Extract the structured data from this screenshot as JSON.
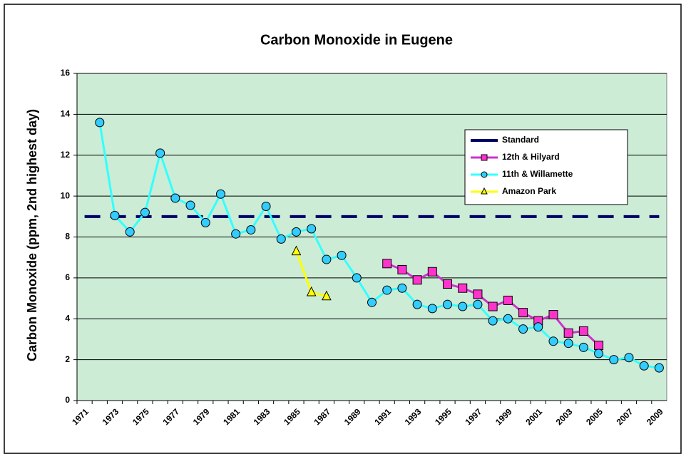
{
  "chart_data": {
    "type": "line",
    "title": "Carbon Monoxide in Eugene",
    "y_label": "Carbon Monoxide (ppm, 2nd highest day)",
    "categories": [
      "1971",
      null,
      "1973",
      null,
      "1975",
      null,
      "1977",
      null,
      "1979",
      null,
      "1981",
      null,
      "1983",
      null,
      "1985",
      null,
      "1987",
      null,
      "1989",
      null,
      "1991",
      null,
      "1993",
      null,
      "1995",
      null,
      "1997",
      null,
      "1999",
      null,
      "2001",
      null,
      "2003",
      null,
      "2005",
      null,
      "2007",
      null,
      "2009"
    ],
    "ylim": [
      0,
      16
    ],
    "yticks": [
      0,
      2,
      4,
      6,
      8,
      10,
      12,
      14,
      16
    ],
    "grid": true,
    "series": [
      {
        "name": "Standard",
        "color": "#000066",
        "marker": "none",
        "dash": true,
        "values": [
          9,
          9,
          9,
          9,
          9,
          9,
          9,
          9,
          9,
          9,
          9,
          9,
          9,
          9,
          9,
          9,
          9,
          9,
          9,
          9,
          9,
          9,
          9,
          9,
          9,
          9,
          9,
          9,
          9,
          9,
          9,
          9,
          9,
          9,
          9,
          9,
          9,
          9,
          9
        ]
      },
      {
        "name": "12th & Hilyard",
        "color": "#cc33cc",
        "marker": "square",
        "marker_color": "#ff33cc",
        "dash": false,
        "values": [
          null,
          null,
          null,
          null,
          null,
          null,
          null,
          null,
          null,
          null,
          null,
          null,
          null,
          null,
          null,
          null,
          null,
          null,
          null,
          null,
          6.7,
          6.4,
          5.9,
          6.3,
          5.7,
          5.5,
          5.2,
          4.6,
          4.9,
          4.3,
          3.9,
          4.2,
          3.3,
          3.4,
          2.7,
          null,
          null,
          null,
          null
        ]
      },
      {
        "name": "11th & Willamette",
        "color": "#33ffff",
        "marker": "circle",
        "marker_color": "#33ccff",
        "dash": false,
        "values": [
          null,
          13.6,
          9.05,
          8.25,
          9.2,
          12.1,
          9.9,
          9.55,
          8.7,
          10.1,
          8.15,
          8.35,
          9.5,
          7.9,
          8.25,
          8.4,
          6.9,
          7.1,
          6.0,
          4.8,
          5.4,
          5.5,
          4.7,
          4.5,
          4.7,
          4.6,
          4.7,
          3.9,
          4.0,
          3.5,
          3.6,
          2.9,
          2.8,
          2.6,
          2.3,
          2.0,
          2.1,
          1.7,
          1.6
        ]
      },
      {
        "name": "Amazon Park",
        "color": "#ffff00",
        "marker": "triangle",
        "marker_color": "#ffff00",
        "dash": false,
        "values": [
          null,
          null,
          null,
          null,
          null,
          null,
          null,
          null,
          null,
          null,
          null,
          null,
          null,
          null,
          7.3,
          5.3,
          5.1,
          null,
          null,
          null,
          null,
          null,
          null,
          null,
          null,
          null,
          null,
          null,
          null,
          null,
          null,
          null,
          null,
          null,
          null,
          null,
          null,
          null,
          null
        ]
      }
    ]
  }
}
